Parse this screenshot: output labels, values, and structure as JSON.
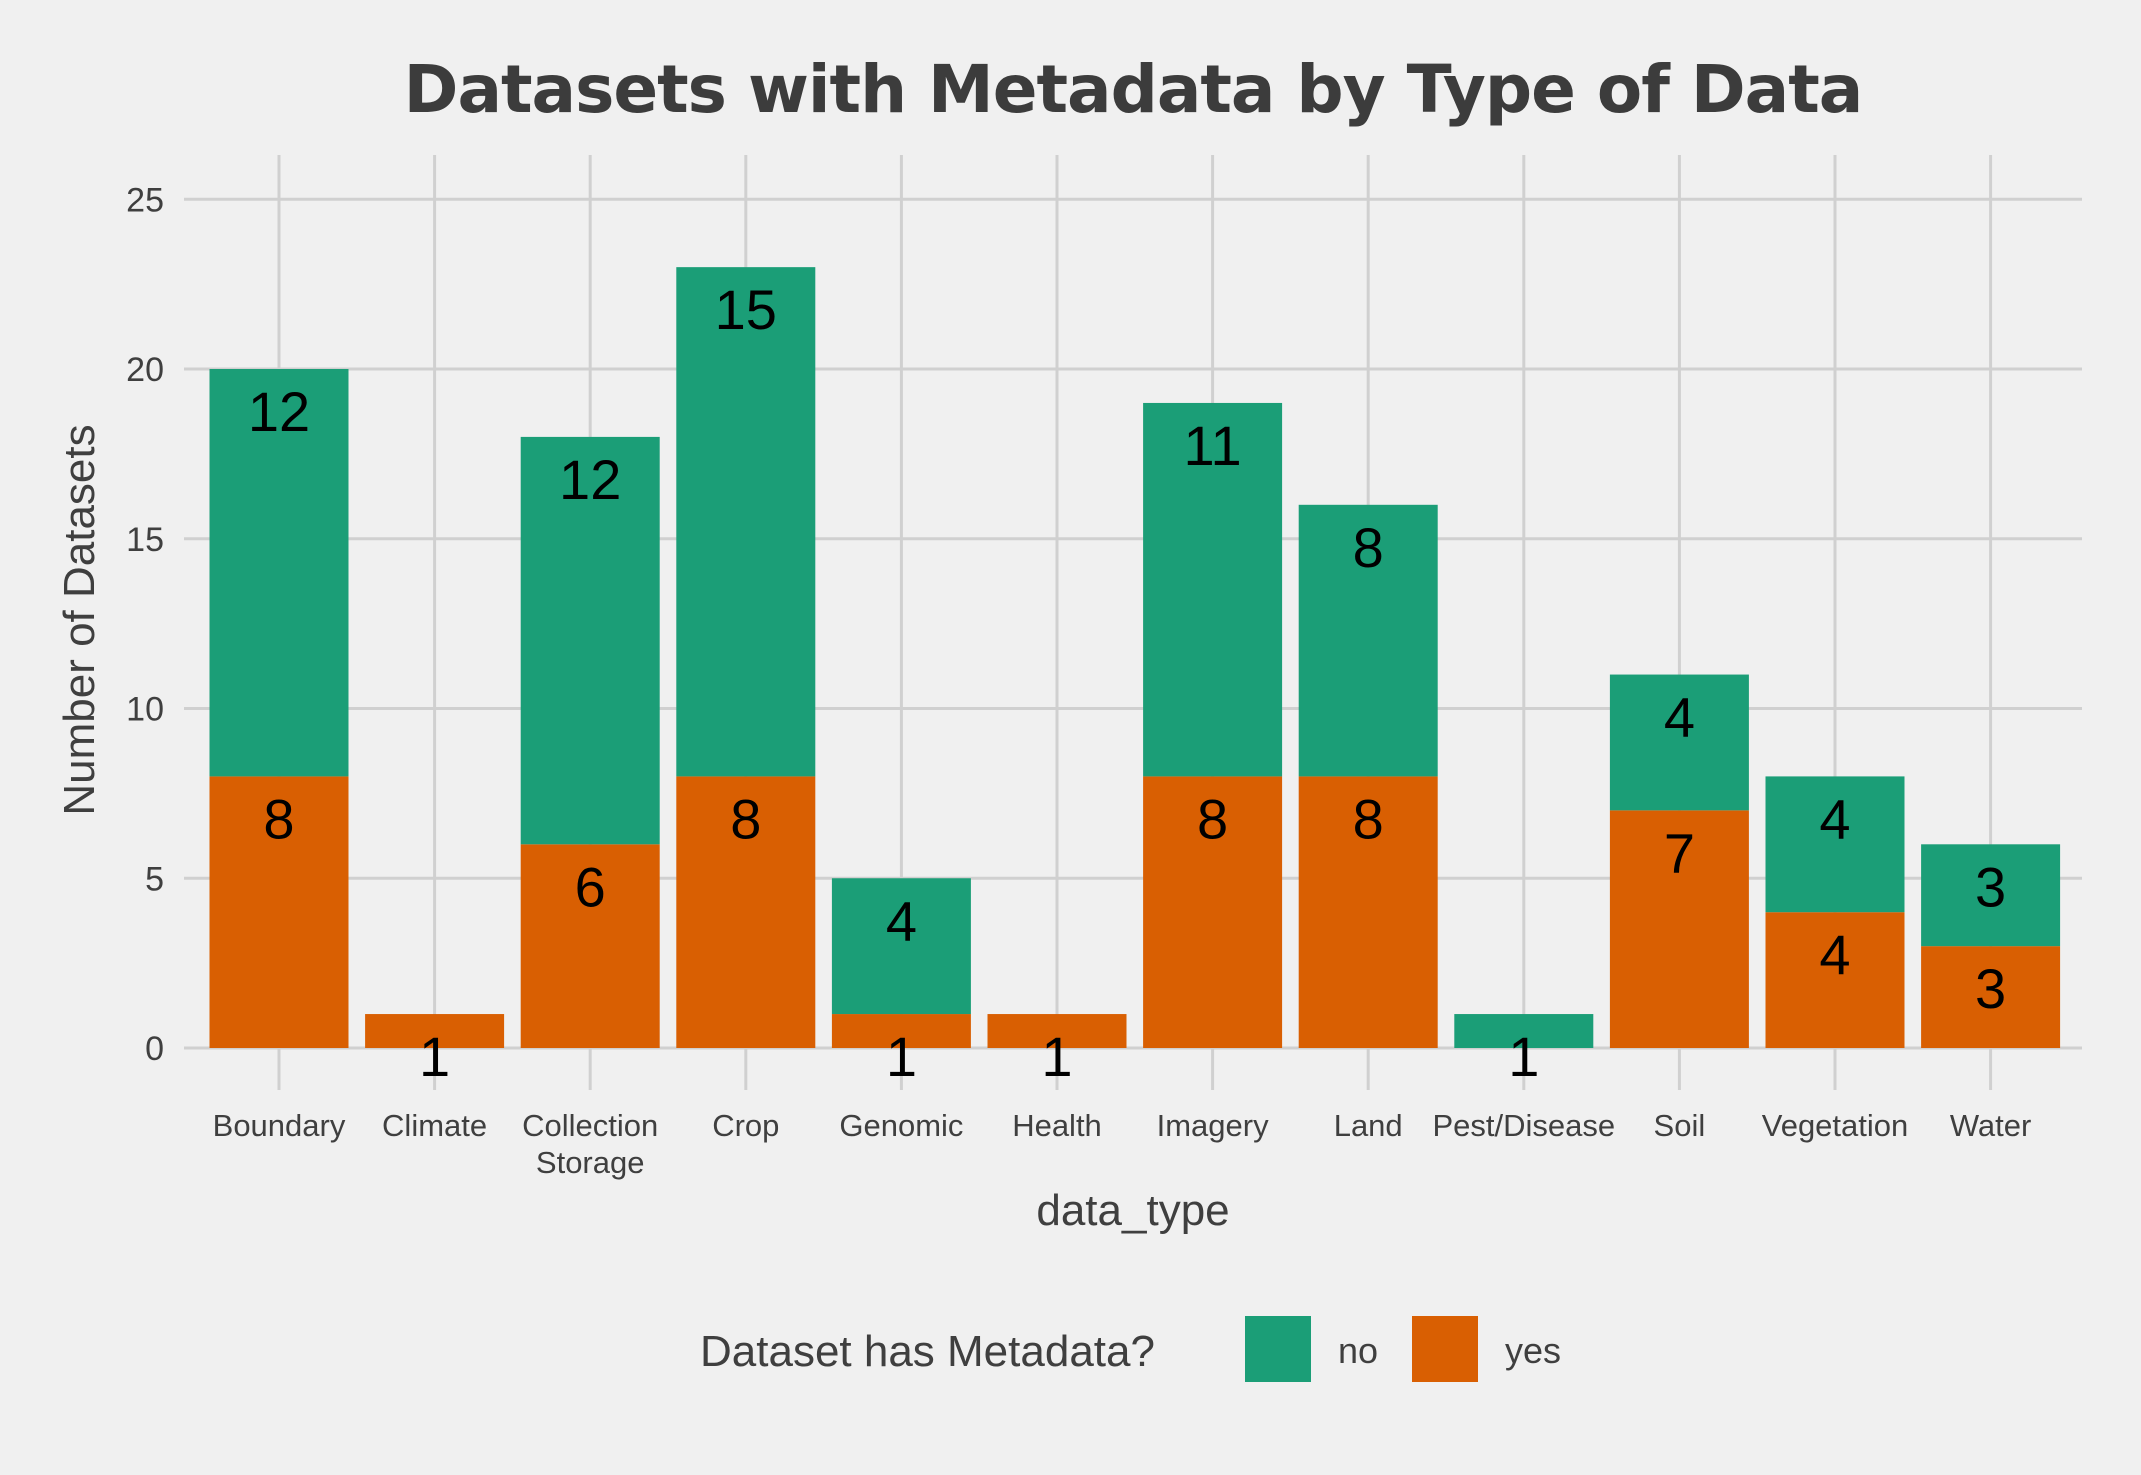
{
  "chart_data": {
    "type": "bar",
    "stacked": true,
    "title": "Datasets with Metadata by Type of Data",
    "xlabel": "data_type",
    "ylabel": "Number of Datasets",
    "categories": [
      [
        "Boundary"
      ],
      [
        "Climate"
      ],
      [
        "Collection",
        "Storage"
      ],
      [
        "Crop"
      ],
      [
        "Genomic"
      ],
      [
        "Health"
      ],
      [
        "Imagery"
      ],
      [
        "Land"
      ],
      [
        "Pest/Disease"
      ],
      [
        "Soil"
      ],
      [
        "Vegetation"
      ],
      [
        "Water"
      ]
    ],
    "series": [
      {
        "name": "yes",
        "color": "#d95f02",
        "values": [
          8,
          1,
          6,
          8,
          1,
          1,
          8,
          8,
          0,
          7,
          4,
          3
        ]
      },
      {
        "name": "no",
        "color": "#1b9e77",
        "values": [
          12,
          0,
          12,
          15,
          4,
          0,
          11,
          8,
          1,
          4,
          4,
          3
        ]
      }
    ],
    "ylim": [
      0,
      26
    ],
    "yticks": [
      0,
      5,
      10,
      15,
      20,
      25
    ],
    "grid": true,
    "legend": {
      "title": "Dataset has Metadata?",
      "position": "bottom",
      "entries": [
        {
          "label": "no",
          "color": "#1b9e77"
        },
        {
          "label": "yes",
          "color": "#d95f02"
        }
      ]
    }
  }
}
